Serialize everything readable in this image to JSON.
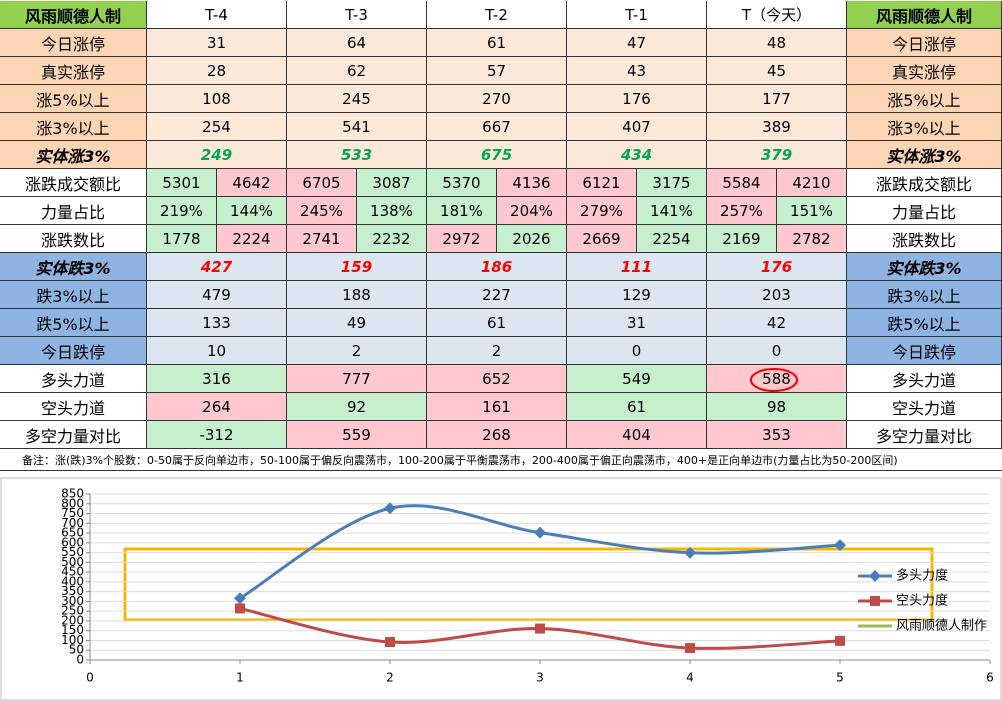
{
  "table": {
    "header": [
      "风雨顺德人制",
      "T-4",
      "T-3",
      "T-2",
      "T-1",
      "T（今天）",
      "风雨顺德人制"
    ],
    "rows": [
      {
        "label": "今日涨停",
        "label_fill": "#fcd5b4",
        "cell_fill": "#fde9d9",
        "cells": [
          "31",
          "64",
          "61",
          "47",
          "48"
        ]
      },
      {
        "label": "真实涨停",
        "label_fill": "#fcd5b4",
        "cell_fill": "#fde9d9",
        "cells": [
          "28",
          "62",
          "57",
          "43",
          "45"
        ]
      },
      {
        "label": "涨5%以上",
        "label_fill": "#fcd5b4",
        "cell_fill": "#fde9d9",
        "cells": [
          "108",
          "245",
          "270",
          "176",
          "177"
        ]
      },
      {
        "label": "涨3%以上",
        "label_fill": "#fcd5b4",
        "cell_fill": "#fde9d9",
        "cells": [
          "254",
          "541",
          "667",
          "407",
          "389"
        ]
      },
      {
        "label": "实体涨3%",
        "label_fill": "#fcd5b4",
        "cell_fill": "#fde9d9",
        "emphasis": true,
        "text_color": "#00a651",
        "cells": [
          "249",
          "533",
          "675",
          "434",
          "379"
        ]
      },
      {
        "label": "涨跌成交额比",
        "label_fill": "#ffffff",
        "cells": [
          [
            "5301",
            "4642"
          ],
          [
            "6705",
            "3087"
          ],
          [
            "5370",
            "4136"
          ],
          [
            "6121",
            "3175"
          ],
          [
            "5584",
            "4210"
          ]
        ],
        "fills": [
          [
            "#c6efce",
            "#ffc7ce"
          ],
          [
            "#ffc7ce",
            "#c6efce"
          ],
          [
            "#c6efce",
            "#ffc7ce"
          ],
          [
            "#ffc7ce",
            "#c6efce"
          ],
          [
            "#ffc7ce",
            "#ffc7ce"
          ]
        ]
      },
      {
        "label": "力量占比",
        "label_fill": "#ffffff",
        "cells": [
          [
            "219%",
            "144%"
          ],
          [
            "245%",
            "138%"
          ],
          [
            "181%",
            "204%"
          ],
          [
            "279%",
            "141%"
          ],
          [
            "257%",
            "151%"
          ]
        ],
        "fills": [
          [
            "#c6efce",
            "#c6efce"
          ],
          [
            "#ffc7ce",
            "#c6efce"
          ],
          [
            "#c6efce",
            "#ffc7ce"
          ],
          [
            "#ffc7ce",
            "#c6efce"
          ],
          [
            "#ffc7ce",
            "#c6efce"
          ]
        ]
      },
      {
        "label": "涨跌数比",
        "label_fill": "#ffffff",
        "cells": [
          [
            "1778",
            "2224"
          ],
          [
            "2741",
            "2232"
          ],
          [
            "2972",
            "2026"
          ],
          [
            "2669",
            "2254"
          ],
          [
            "2169",
            "2782"
          ]
        ],
        "fills": [
          [
            "#c6efce",
            "#ffc7ce"
          ],
          [
            "#ffc7ce",
            "#c6efce"
          ],
          [
            "#ffc7ce",
            "#c6efce"
          ],
          [
            "#ffc7ce",
            "#c6efce"
          ],
          [
            "#c6efce",
            "#ffc7ce"
          ]
        ]
      },
      {
        "label": "实体跌3%",
        "label_fill": "#8db4e2",
        "cell_fill": "#dce6f1",
        "emphasis": true,
        "text_color": "#ff0000",
        "cells": [
          "427",
          "159",
          "186",
          "111",
          "176"
        ]
      },
      {
        "label": "跌3%以上",
        "label_fill": "#8db4e2",
        "cell_fill": "#dce6f1",
        "cells": [
          "479",
          "188",
          "227",
          "129",
          "203"
        ]
      },
      {
        "label": "跌5%以上",
        "label_fill": "#8db4e2",
        "cell_fill": "#dce6f1",
        "cells": [
          "133",
          "49",
          "61",
          "31",
          "42"
        ]
      },
      {
        "label": "今日跌停",
        "label_fill": "#8db4e2",
        "cell_fill": "#dce6f1",
        "cells": [
          "10",
          "2",
          "2",
          "0",
          "0"
        ]
      },
      {
        "label": "多头力道",
        "label_fill": "#ffffff",
        "cells": [
          "316",
          "777",
          "652",
          "549",
          "588"
        ],
        "fills": [
          "#c6efce",
          "#ffc7ce",
          "#ffc7ce",
          "#c6efce",
          "#ffc7ce"
        ]
      },
      {
        "label": "空头力道",
        "label_fill": "#ffffff",
        "cells": [
          "264",
          "92",
          "161",
          "61",
          "98"
        ],
        "fills": [
          "#ffc7ce",
          "#c6efce",
          "#ffc7ce",
          "#c6efce",
          "#c6efce"
        ]
      },
      {
        "label": "多空力量对比",
        "label_fill": "#ffffff",
        "cells": [
          "-312",
          "559",
          "268",
          "404",
          "353"
        ],
        "fills": [
          "#c6efce",
          "#ffc7ce",
          "#ffc7ce",
          "#ffc7ce",
          "#ffc7ce"
        ]
      }
    ],
    "note": "备注：涨(跌)3%个股数：0-50属于反向单边市，50-100属于偏反向震荡市，100-200属于平衡震荡市，200-400属于偏正向震荡市，400+是正向单边市(力量占比为50-200区间)"
  },
  "chart_data": {
    "type": "scatter",
    "x": [
      1,
      2,
      3,
      4,
      5
    ],
    "series": [
      {
        "name": "多头力度",
        "color": "#4a7ebb",
        "marker": "diamond",
        "values": [
          316,
          777,
          652,
          549,
          588
        ]
      },
      {
        "name": "空头力度",
        "color": "#be4b48",
        "marker": "square",
        "values": [
          264,
          92,
          161,
          61,
          98
        ]
      },
      {
        "name": "风雨顺德人制作",
        "color": "#9bbb59",
        "values": [
          null,
          null,
          null,
          null,
          null
        ]
      }
    ],
    "xlim": [
      0,
      6
    ],
    "xticks": [
      0,
      1,
      2,
      3,
      4,
      5,
      6
    ],
    "ylim": [
      0,
      850
    ],
    "yticks": [
      0,
      50,
      100,
      150,
      200,
      250,
      300,
      350,
      400,
      450,
      500,
      550,
      600,
      650,
      700,
      750,
      800,
      850
    ],
    "grid": true,
    "legend": "right"
  }
}
